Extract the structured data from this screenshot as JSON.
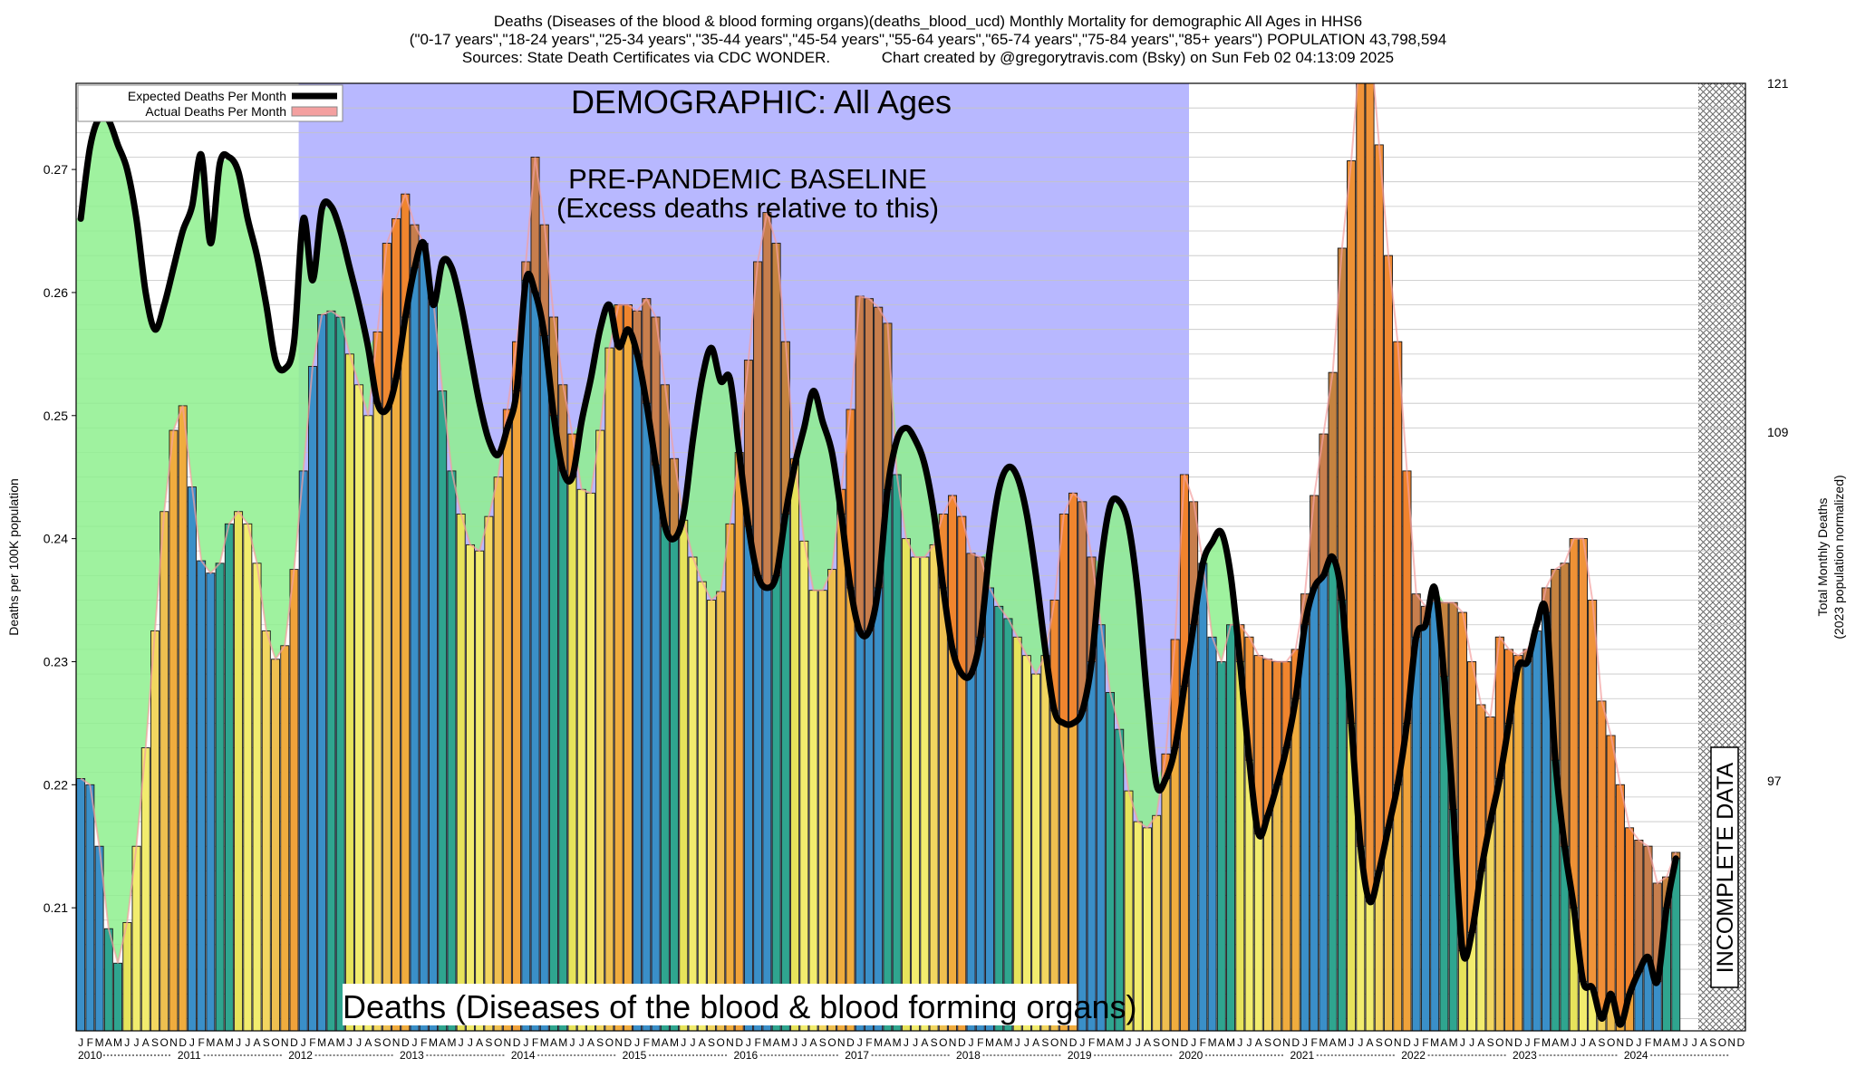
{
  "header": {
    "line1": "Deaths (Diseases of the blood & blood forming organs)(deaths_blood_ucd) Monthly Mortality for demographic All Ages in HHS6",
    "line2": "(\"0-17 years\",\"18-24 years\",\"25-34 years\",\"35-44 years\",\"45-54 years\",\"55-64 years\",\"65-74 years\",\"75-84 years\",\"85+ years\") POPULATION 43,798,594",
    "line3": "Sources: State Death Certificates via CDC WONDER.            Chart created by @gregorytravis.com (Bsky) on Sun Feb 02 04:13:09 2025"
  },
  "chart_data": {
    "type": "bar",
    "title": "DEMOGRAPHIC: All Ages",
    "ylabel": "Deaths per 100K population",
    "y2label_line1": "Total Monthly Deaths",
    "y2label_line2": "(2023 population normalized)",
    "ylim": [
      0.2,
      0.277
    ],
    "yticks": [
      "0.21",
      "0.22",
      "0.23",
      "0.24",
      "0.25",
      "0.26",
      "0.27"
    ],
    "y2ticks": [
      "97",
      "109",
      "121"
    ],
    "legend": {
      "expected": "Expected Deaths Per Month",
      "actual": "Actual Deaths Per Month",
      "position": "top-left"
    },
    "baseline_label_line1": "PRE-PANDEMIC BASELINE",
    "baseline_label_line2": "(Excess deaths relative to this)",
    "baseline_range": [
      "2012-01",
      "2019-12"
    ],
    "incomplete_label": "INCOMPLETE DATA",
    "bottom_caption": "Deaths (Diseases of the blood & blood forming organs)",
    "month_letters": [
      "J",
      "F",
      "M",
      "A",
      "M",
      "J",
      "J",
      "A",
      "S",
      "O",
      "N",
      "D"
    ],
    "years": [
      "2010",
      "2011",
      "2012",
      "2013",
      "2014",
      "2015",
      "2016",
      "2017",
      "2018",
      "2019",
      "2020",
      "2021",
      "2022",
      "2023",
      "2024"
    ],
    "colors": {
      "shortage": "#8ef08e",
      "baseline": "#b8b8ff",
      "excess": "#f4a0a0",
      "expected_line": "#000000"
    },
    "x": [
      "2010-01",
      "2024-12"
    ],
    "actual": [
      0.2205,
      0.22,
      0.215,
      0.2083,
      0.2055,
      0.2088,
      0.215,
      0.223,
      0.2325,
      0.2422,
      0.2488,
      0.2508,
      0.2442,
      0.2382,
      0.2372,
      0.238,
      0.2412,
      0.2422,
      0.2412,
      0.238,
      0.2325,
      0.2302,
      0.2313,
      0.2375,
      0.2455,
      0.254,
      0.2582,
      0.2585,
      0.258,
      0.255,
      0.2525,
      0.25,
      0.2568,
      0.264,
      0.266,
      0.268,
      0.2655,
      0.264,
      0.2595,
      0.252,
      0.2455,
      0.242,
      0.2395,
      0.239,
      0.2418,
      0.245,
      0.2505,
      0.256,
      0.2625,
      0.271,
      0.2655,
      0.258,
      0.2525,
      0.2485,
      0.244,
      0.2437,
      0.2488,
      0.2555,
      0.259,
      0.259,
      0.2585,
      0.2595,
      0.258,
      0.2525,
      0.2465,
      0.2415,
      0.2385,
      0.2365,
      0.235,
      0.2357,
      0.2412,
      0.247,
      0.2545,
      0.2625,
      0.2665,
      0.264,
      0.256,
      0.2465,
      0.2398,
      0.2358,
      0.2358,
      0.2375,
      0.244,
      0.2505,
      0.2597,
      0.2595,
      0.2588,
      0.2575,
      0.2452,
      0.24,
      0.2385,
      0.2385,
      0.2395,
      0.242,
      0.2435,
      0.2418,
      0.2388,
      0.2385,
      0.236,
      0.2345,
      0.2335,
      0.232,
      0.2305,
      0.229,
      0.2305,
      0.235,
      0.242,
      0.2437,
      0.243,
      0.2385,
      0.233,
      0.2275,
      0.2245,
      0.2195,
      0.217,
      0.2165,
      0.2175,
      0.2225,
      0.2318,
      0.2452,
      0.243,
      0.238,
      0.232,
      0.23,
      0.233,
      0.233,
      0.232,
      0.2305,
      0.2302,
      0.23,
      0.23,
      0.231,
      0.2355,
      0.2435,
      0.2485,
      0.2535,
      0.2636,
      0.2707,
      0.28,
      0.281,
      0.272,
      0.263,
      0.256,
      0.2455,
      0.2355,
      0.2345,
      0.235,
      0.2348,
      0.2348,
      0.234,
      0.23,
      0.2265,
      0.2255,
      0.232,
      0.231,
      0.2305,
      0.231,
      0.2325,
      0.236,
      0.2375,
      0.238,
      0.24,
      0.24,
      0.235,
      0.2268,
      0.224,
      0.22,
      0.2165,
      0.2155,
      0.215,
      0.212,
      0.2125,
      0.2145
    ],
    "expected": [
      0.266,
      0.2718,
      0.2742,
      0.274,
      0.272,
      0.27,
      0.266,
      0.26,
      0.257,
      0.259,
      0.262,
      0.265,
      0.267,
      0.2712,
      0.264,
      0.2705,
      0.271,
      0.2698,
      0.266,
      0.263,
      0.259,
      0.2545,
      0.2538,
      0.256,
      0.266,
      0.261,
      0.2668,
      0.267,
      0.265,
      0.262,
      0.259,
      0.2555,
      0.251,
      0.2505,
      0.253,
      0.258,
      0.262,
      0.264,
      0.259,
      0.2625,
      0.262,
      0.259,
      0.255,
      0.251,
      0.248,
      0.2468,
      0.249,
      0.252,
      0.261,
      0.26,
      0.2565,
      0.25,
      0.2455,
      0.245,
      0.2495,
      0.253,
      0.257,
      0.259,
      0.2556,
      0.257,
      0.255,
      0.251,
      0.246,
      0.241,
      0.24,
      0.242,
      0.248,
      0.253,
      0.2555,
      0.2528,
      0.253,
      0.247,
      0.241,
      0.237,
      0.236,
      0.237,
      0.242,
      0.246,
      0.249,
      0.252,
      0.2495,
      0.247,
      0.242,
      0.236,
      0.2325,
      0.2325,
      0.236,
      0.244,
      0.248,
      0.249,
      0.248,
      0.246,
      0.242,
      0.236,
      0.231,
      0.229,
      0.229,
      0.232,
      0.239,
      0.244,
      0.2458,
      0.245,
      0.242,
      0.237,
      0.231,
      0.226,
      0.225,
      0.225,
      0.226,
      0.23,
      0.238,
      0.2427,
      0.243,
      0.241,
      0.2355,
      0.227,
      0.22,
      0.2205,
      0.223,
      0.228,
      0.233,
      0.238,
      0.2397,
      0.2405,
      0.237,
      0.23,
      0.222,
      0.216,
      0.2175,
      0.22,
      0.223,
      0.227,
      0.233,
      0.236,
      0.237,
      0.2385,
      0.235,
      0.225,
      0.215,
      0.2105,
      0.213,
      0.2165,
      0.22,
      0.225,
      0.232,
      0.233,
      0.236,
      0.2288,
      0.218,
      0.2065,
      0.208,
      0.213,
      0.217,
      0.2205,
      0.225,
      0.2296,
      0.23,
      0.233,
      0.234,
      0.222,
      0.215,
      0.21,
      0.204,
      0.2035,
      0.201,
      0.203,
      0.2005,
      0.203,
      0.2048,
      0.206,
      0.204,
      0.21,
      0.214
    ]
  }
}
